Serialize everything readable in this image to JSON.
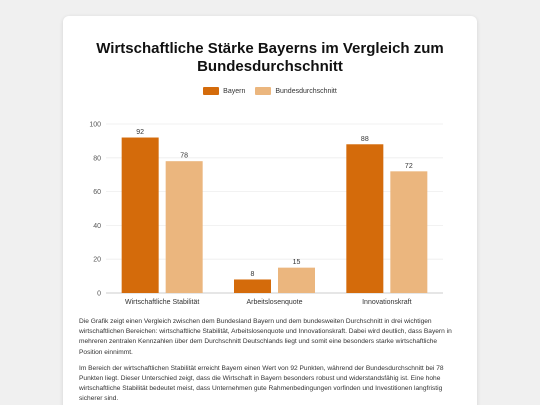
{
  "colors": {
    "series_bayern": "#d46b0b",
    "series_bund": "#ebb67e"
  },
  "chart_data": {
    "type": "bar",
    "title": "Wirtschaftliche Stärke Bayerns im Vergleich zum Bundesdurchschnitt",
    "categories": [
      "Wirtschaftliche Stabilität",
      "Arbeitslosenquote",
      "Innovationskraft"
    ],
    "series": [
      {
        "name": "Bayern",
        "values": [
          92,
          8,
          88
        ]
      },
      {
        "name": "Bundesdurchschnitt",
        "values": [
          78,
          15,
          72
        ]
      }
    ],
    "ylim": [
      0,
      100
    ],
    "yticks": [
      0,
      20,
      40,
      60,
      80,
      100
    ],
    "xlabel": "",
    "ylabel": "",
    "legend_position": "top-center",
    "grid": true
  },
  "text": {
    "paragraph_1": "Die Grafik zeigt einen Vergleich zwischen dem Bundesland Bayern und dem bundesweiten Durchschnitt in drei wichtigen wirtschaftlichen Bereichen: wirtschaftliche Stabilität, Arbeitslosenquote und Innovationskraft. Dabei wird deutlich, dass Bayern in mehreren zentralen Kennzahlen über dem Durchschnitt Deutschlands liegt und somit eine besonders starke wirtschaftliche Position einnimmt.",
    "paragraph_2": "Im Bereich der wirtschaftlichen Stabilität erreicht Bayern einen Wert von 92 Punkten, während der Bundesdurchschnitt bei 78 Punkten liegt. Dieser Unterschied zeigt, dass die Wirtschaft in Bayern besonders robust und widerstandsfähig ist. Eine hohe wirtschaftliche Stabilität bedeutet meist, dass Unternehmen gute Rahmenbedingungen vorfinden und Investitionen langfristig sicherer sind."
  }
}
